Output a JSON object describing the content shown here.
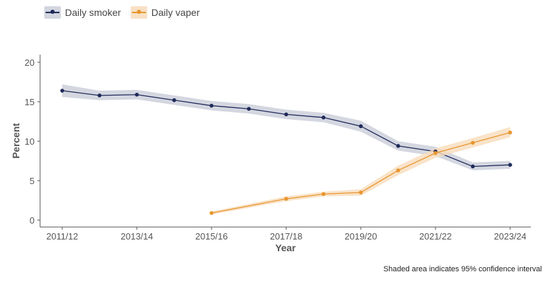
{
  "chart_data": {
    "type": "line",
    "x": [
      "2011/12",
      "2012/13",
      "2013/14",
      "2014/15",
      "2015/16",
      "2016/17",
      "2017/18",
      "2018/19",
      "2019/20",
      "2020/21",
      "2021/22",
      "2022/23",
      "2023/24"
    ],
    "x_tick_labels": [
      "2011/12",
      "2013/14",
      "2015/16",
      "2017/18",
      "2019/20",
      "2021/22",
      "2023/24"
    ],
    "xlabel": "Year",
    "ylabel": "Percent",
    "ylim": [
      0,
      20
    ],
    "yticks": [
      0,
      5,
      10,
      15,
      20
    ],
    "grid": false,
    "legend_position": "top-left",
    "series": [
      {
        "name": "Daily smoker",
        "color": "#1f2a5a",
        "band_color": "#c9cdd8",
        "values": [
          16.4,
          15.8,
          15.9,
          15.2,
          14.5,
          14.1,
          13.4,
          13.0,
          11.9,
          9.4,
          8.7,
          6.8,
          7.0
        ],
        "lower": [
          15.6,
          15.2,
          15.3,
          14.6,
          13.9,
          13.5,
          12.8,
          12.4,
          11.2,
          8.8,
          8.1,
          6.3,
          6.5
        ],
        "upper": [
          17.2,
          16.4,
          16.5,
          15.8,
          15.1,
          14.7,
          14.0,
          13.6,
          12.6,
          10.0,
          9.3,
          7.3,
          7.5
        ]
      },
      {
        "name": "Daily vaper",
        "color": "#e8962e",
        "band_color": "#f8dcbc",
        "values": [
          null,
          null,
          null,
          null,
          0.9,
          null,
          2.7,
          3.3,
          3.5,
          6.3,
          8.5,
          9.8,
          11.1
        ],
        "lower": [
          null,
          null,
          null,
          null,
          0.7,
          null,
          2.4,
          3.0,
          3.1,
          5.7,
          7.9,
          9.2,
          10.5
        ],
        "upper": [
          null,
          null,
          null,
          null,
          1.1,
          null,
          3.0,
          3.6,
          3.9,
          6.9,
          9.1,
          10.4,
          11.8
        ]
      }
    ],
    "note": "Shaded area indicates 95% confidence interval"
  }
}
